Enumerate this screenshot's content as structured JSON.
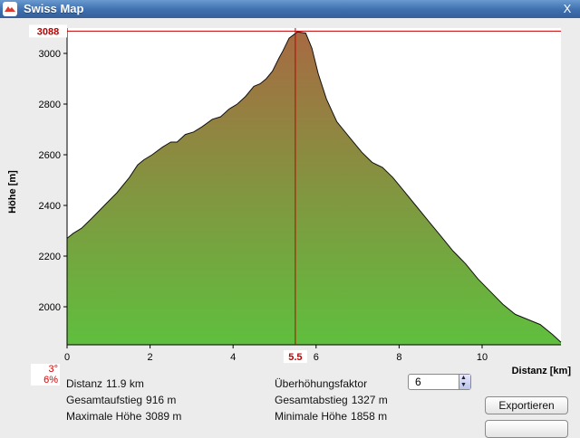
{
  "window": {
    "title": "Swiss Map",
    "close_label": "X"
  },
  "colors": {
    "fill_top": "#a76a42",
    "fill_bottom": "#5fbf3e",
    "marker": "#c00000"
  },
  "marker_readouts": {
    "y": "3088",
    "x": "5.5"
  },
  "chart_data": {
    "type": "area",
    "title": "",
    "xlabel": "Distanz [km]",
    "ylabel": "Höhe [m]",
    "xlim": [
      0,
      11.9
    ],
    "ylim": [
      1850,
      3100
    ],
    "xticks": [
      0,
      2,
      4,
      6,
      8,
      10
    ],
    "yticks": [
      2000,
      2200,
      2400,
      2600,
      2800,
      3000
    ],
    "x": [
      0,
      0.15,
      0.35,
      0.6,
      0.9,
      1.2,
      1.5,
      1.7,
      1.85,
      2.05,
      2.3,
      2.5,
      2.65,
      2.85,
      3.05,
      3.25,
      3.5,
      3.7,
      3.9,
      4.1,
      4.3,
      4.5,
      4.65,
      4.8,
      4.95,
      5.1,
      5.2,
      5.35,
      5.55,
      5.75,
      5.9,
      6.05,
      6.25,
      6.5,
      6.8,
      7.1,
      7.35,
      7.6,
      7.85,
      8.1,
      8.4,
      8.7,
      9.0,
      9.3,
      9.6,
      9.9,
      10.2,
      10.5,
      10.8,
      11.1,
      11.4,
      11.7,
      11.9
    ],
    "values": [
      2270,
      2290,
      2310,
      2350,
      2400,
      2450,
      2510,
      2560,
      2580,
      2600,
      2630,
      2650,
      2650,
      2680,
      2690,
      2710,
      2740,
      2750,
      2780,
      2800,
      2830,
      2870,
      2880,
      2900,
      2930,
      2980,
      3010,
      3060,
      3085,
      3080,
      3020,
      2920,
      2820,
      2730,
      2670,
      2610,
      2570,
      2550,
      2510,
      2460,
      2400,
      2340,
      2280,
      2220,
      2170,
      2110,
      2060,
      2010,
      1970,
      1950,
      1930,
      1890,
      1860
    ],
    "marker_x": 5.5,
    "marker_y": 3088,
    "grid": false
  },
  "stats": {
    "distance": {
      "label": "Distanz",
      "value": "11.9 km"
    },
    "ascent": {
      "label": "Gesamtaufstieg",
      "value": "916 m"
    },
    "max_height": {
      "label": "Maximale Höhe",
      "value": "3089 m"
    },
    "factor": {
      "label": "Überhöhungsfaktor",
      "value": "6"
    },
    "descent": {
      "label": "Gesamtabstieg",
      "value": "1327 m"
    },
    "min_height": {
      "label": "Minimale Höhe",
      "value": "1858 m"
    }
  },
  "slope": {
    "angle": "3°",
    "percent": "6%"
  },
  "buttons": {
    "export": "Exportieren"
  }
}
